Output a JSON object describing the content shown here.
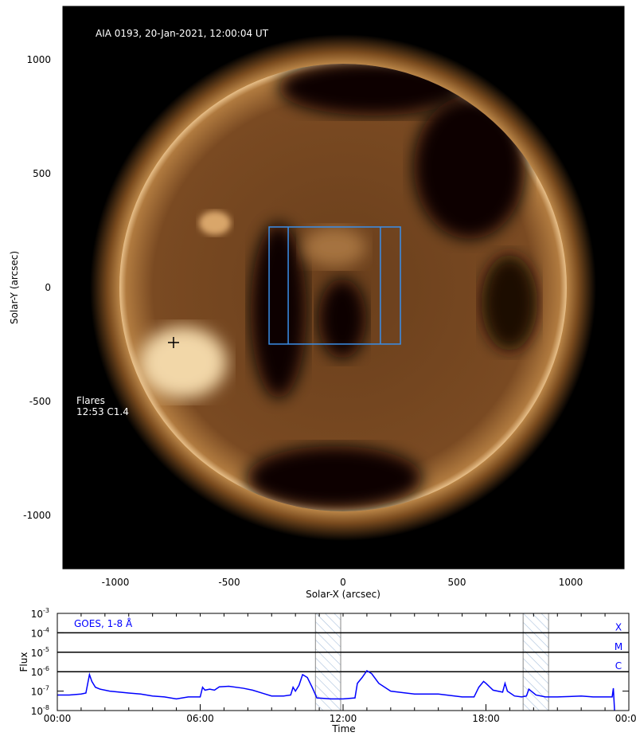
{
  "image_panel": {
    "title": "AIA 0193, 20-Jan-2021, 12:00:04 UT",
    "xlabel": "Solar-X (arcsec)",
    "ylabel": "Solar-Y (arcsec)",
    "xticks": [
      -1000,
      -500,
      0,
      500,
      1000
    ],
    "yticks": [
      1000,
      500,
      0,
      -500,
      -1000
    ],
    "xlim": [
      -1230,
      1230
    ],
    "ylim": [
      -1230,
      1230
    ],
    "flares_label": "Flares",
    "flares": [
      "12:53 C1.4"
    ],
    "flare_marker": {
      "x": -745,
      "y": -241
    },
    "fov_box": {
      "x": [
        -325,
        252
      ],
      "y": [
        -248,
        266
      ],
      "inner_x": [
        -241,
        164
      ]
    },
    "box_color": "#3a8ee8"
  },
  "chart_data": {
    "type": "line",
    "title": "GOES, 1-8 Å",
    "xlabel": "Time",
    "ylabel": "Flux",
    "xticks": [
      "00:00",
      "06:00",
      "12:00",
      "18:00",
      "00:00"
    ],
    "yticks": [
      "10^-3",
      "10^-4",
      "10^-5",
      "10^-6",
      "10^-7",
      "10^-8"
    ],
    "ylim": [
      1e-08,
      0.001
    ],
    "yscale": "log",
    "xlim_hours": [
      0,
      24
    ],
    "class_labels": [
      "X",
      "M",
      "C"
    ],
    "shaded_intervals_hours": [
      [
        10.84,
        11.9
      ],
      [
        19.56,
        20.63
      ]
    ],
    "series_color": "#0000ff",
    "series": [
      {
        "name": "GOES, 1-8 Å",
        "x_hours": [
          0,
          0.5,
          1.0,
          1.2,
          1.35,
          1.45,
          1.6,
          1.8,
          2.2,
          3,
          3.5,
          4,
          4.5,
          5,
          5.5,
          6,
          6.1,
          6.2,
          6.4,
          6.6,
          6.8,
          7.2,
          7.8,
          8.2,
          8.6,
          9,
          9.5,
          9.8,
          9.9,
          10.0,
          10.15,
          10.3,
          10.5,
          10.7,
          10.9,
          11.5,
          12,
          12.5,
          12.6,
          12.8,
          13.0,
          13.2,
          13.5,
          14,
          15,
          16,
          17,
          17.5,
          17.7,
          17.9,
          18,
          18.3,
          18.7,
          18.8,
          18.9,
          19.2,
          19.5,
          19.7,
          19.8,
          20.1,
          20.5,
          21,
          21.5,
          22,
          22.5,
          23,
          23.3,
          23.35,
          23.4
        ],
        "log_flux": [
          -7.2,
          -7.2,
          -7.15,
          -7.1,
          -6.15,
          -6.5,
          -6.8,
          -6.9,
          -7.0,
          -7.1,
          -7.15,
          -7.25,
          -7.3,
          -7.4,
          -7.3,
          -7.3,
          -6.8,
          -6.95,
          -6.9,
          -6.95,
          -6.78,
          -6.75,
          -6.85,
          -6.95,
          -7.1,
          -7.25,
          -7.25,
          -7.2,
          -6.8,
          -7.0,
          -6.7,
          -6.15,
          -6.3,
          -6.8,
          -7.35,
          -7.4,
          -7.4,
          -7.35,
          -6.6,
          -6.3,
          -5.95,
          -6.1,
          -6.6,
          -7.0,
          -7.15,
          -7.15,
          -7.3,
          -7.3,
          -6.8,
          -6.5,
          -6.6,
          -6.95,
          -7.05,
          -6.6,
          -7.0,
          -7.25,
          -7.3,
          -7.25,
          -6.9,
          -7.2,
          -7.3,
          -7.3,
          -7.28,
          -7.25,
          -7.3,
          -7.3,
          -7.3,
          -6.85,
          -8.0
        ]
      }
    ]
  }
}
